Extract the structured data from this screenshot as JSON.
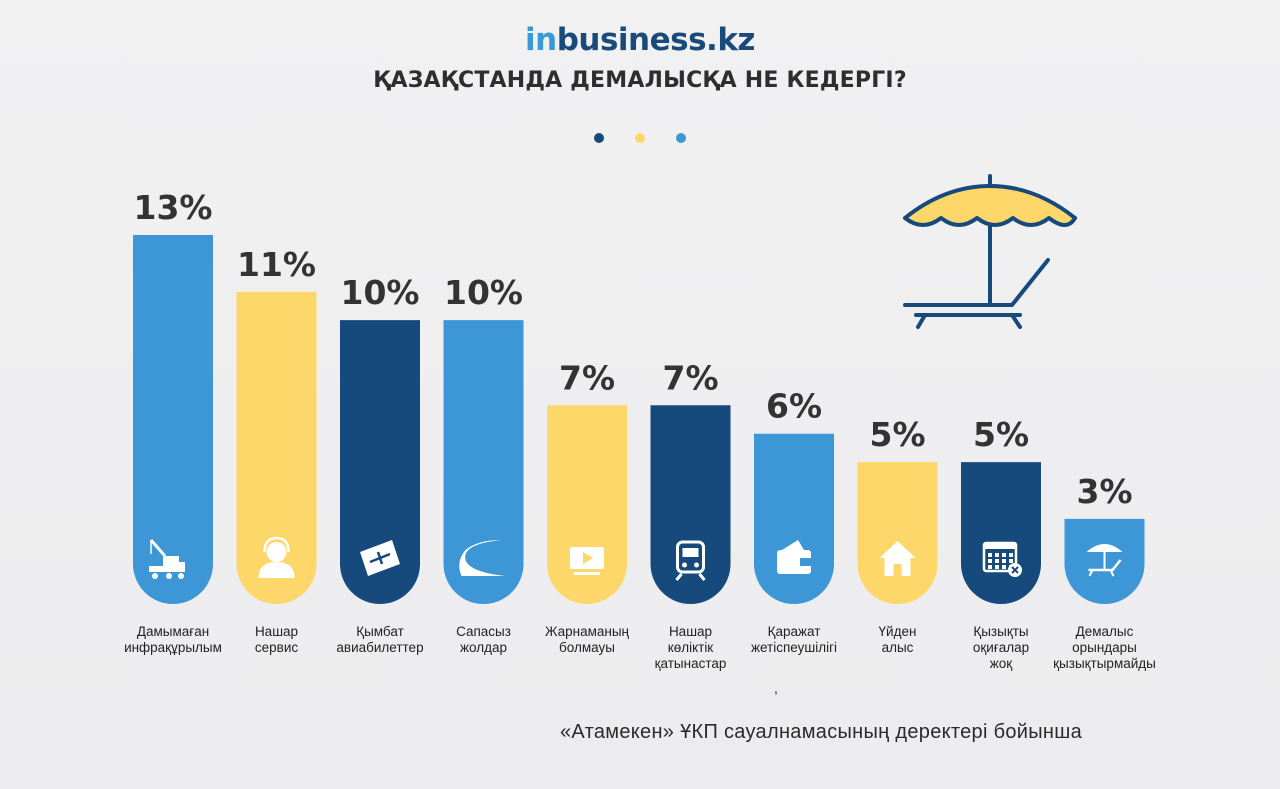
{
  "header": {
    "logo_prefix": "in",
    "logo_rest": "business.kz",
    "title": "ҚАЗАҚСТАНДА ДЕМАЛЫСҚА НЕ КЕДЕРГІ?"
  },
  "colors": {
    "blue": "#3d96d6",
    "yellow": "#fdd76a",
    "navy": "#174a7c",
    "dots": [
      "#174a7c",
      "#fdd76a",
      "#3d96d6"
    ]
  },
  "chart_data": {
    "type": "bar",
    "title": "ҚАЗАҚСТАНДА ДЕМАЛЫСҚА НЕ КЕДЕРГІ?",
    "unit": "%",
    "ylim": [
      0,
      13
    ],
    "grid": false,
    "categories": [
      "Дамымаған инфрақұрылым",
      "Нашар сервис",
      "Қымбат авиабилеттер",
      "Сапасыз жолдар",
      "Жарнаманың болмауы",
      "Нашар көліктік қатынастар",
      "Қаражат жетіспеушілігі",
      "Үйден алыс",
      "Қызықты оқиғалар жоқ",
      "Демалыс орындары қызықтырмайды"
    ],
    "values": [
      13,
      11,
      10,
      10,
      7,
      7,
      6,
      5,
      5,
      3
    ],
    "value_labels": [
      "13%",
      "11%",
      "10%",
      "10%",
      "7%",
      "7%",
      "6%",
      "5%",
      "5%",
      "3%"
    ],
    "bar_colors": [
      "#3d96d6",
      "#fdd76a",
      "#174a7c",
      "#3d96d6",
      "#fdd76a",
      "#174a7c",
      "#3d96d6",
      "#fdd76a",
      "#174a7c",
      "#3d96d6"
    ],
    "icons": [
      "crane-icon",
      "support-agent-icon",
      "plane-ticket-icon",
      "road-icon",
      "video-ad-icon",
      "train-icon",
      "wallet-icon",
      "house-icon",
      "calendar-cancel-icon",
      "beach-umbrella-icon"
    ]
  },
  "category_lines": [
    [
      "Дамымаған",
      "инфрақұрылым"
    ],
    [
      "Нашар",
      "сервис"
    ],
    [
      "Қымбат",
      "авиабилеттер"
    ],
    [
      "Сапасыз",
      "жолдар"
    ],
    [
      "Жарнаманың",
      "болмауы"
    ],
    [
      "Нашар",
      "көліктік",
      "қатынастар"
    ],
    [
      "Қаражат",
      "жетіспеушілігі"
    ],
    [
      "Үйден",
      "алыс"
    ],
    [
      "Қызықты",
      "оқиғалар",
      "жоқ"
    ],
    [
      "Демалыс",
      "орындары",
      "қызықтырмайды"
    ]
  ],
  "stray_mark": ",",
  "decoration": {
    "icon": "beach-lounger-icon"
  },
  "footer": {
    "source": "«Атамекен» ҰКП сауалнамасының деректері бойынша"
  }
}
